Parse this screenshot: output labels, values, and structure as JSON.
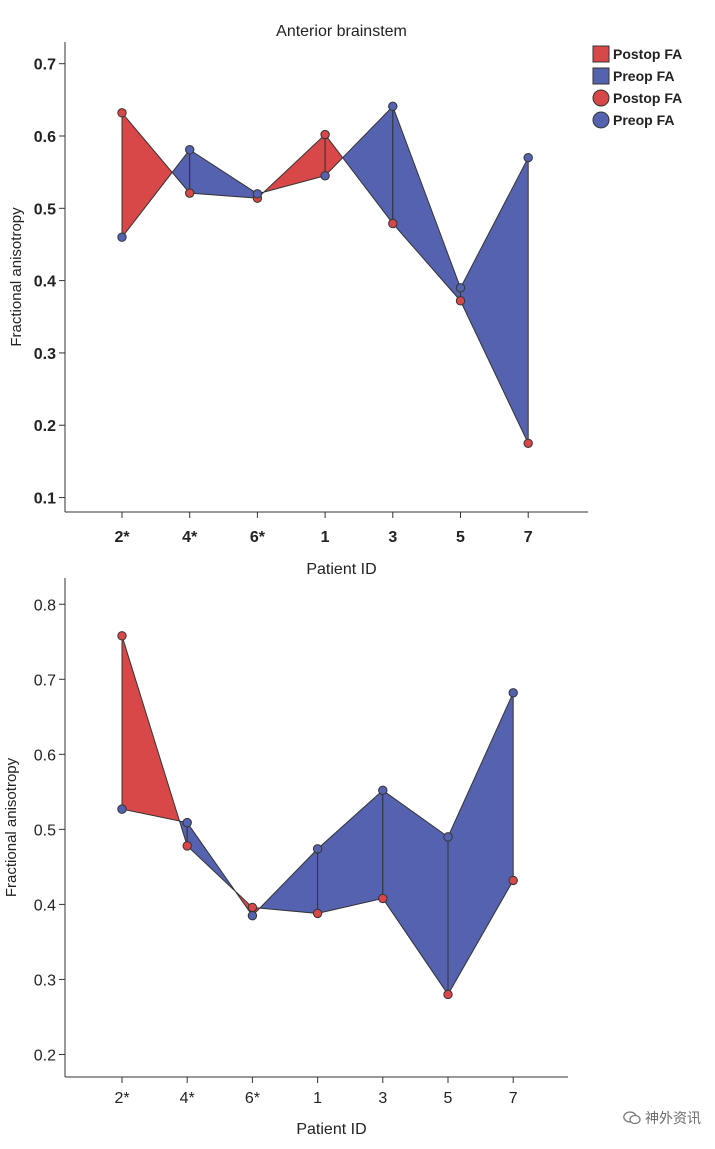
{
  "legend": {
    "items": [
      {
        "label": "Postop FA",
        "shape": "square",
        "color": "#d94848"
      },
      {
        "label": "Preop FA",
        "shape": "square",
        "color": "#5562b0"
      },
      {
        "label": "Postop FA",
        "shape": "circle",
        "color": "#d94848"
      },
      {
        "label": "Preop FA",
        "shape": "circle",
        "color": "#5562b0"
      }
    ]
  },
  "colors": {
    "postop": "#d94848",
    "preop": "#5562b0",
    "axis": "#333333"
  },
  "watermark": {
    "text": "神外资讯"
  },
  "chart_data": [
    {
      "type": "area",
      "title": "Anterior brainstem",
      "xlabel": "Patient ID",
      "ylabel": "Fractional anisotropy",
      "categories": [
        "2*",
        "4*",
        "6*",
        "1",
        "3",
        "5",
        "7"
      ],
      "yticks": [
        "0.1",
        "0.2",
        "0.3",
        "0.4",
        "0.5",
        "0.6",
        "0.7"
      ],
      "ylim": [
        0.08,
        0.73
      ],
      "series": [
        {
          "name": "Postop FA",
          "values": [
            0.632,
            0.521,
            0.514,
            0.602,
            0.479,
            0.372,
            0.175
          ]
        },
        {
          "name": "Preop FA",
          "values": [
            0.46,
            0.581,
            0.52,
            0.545,
            0.641,
            0.39,
            0.57
          ]
        }
      ]
    },
    {
      "type": "area",
      "title": "",
      "xlabel": "Patient ID",
      "ylabel": "Fractional anisotropy",
      "categories": [
        "2*",
        "4*",
        "6*",
        "1",
        "3",
        "5",
        "7"
      ],
      "yticks": [
        "0.2",
        "0.3",
        "0.4",
        "0.5",
        "0.6",
        "0.7",
        "0.8"
      ],
      "ylim": [
        0.17,
        0.835
      ],
      "series": [
        {
          "name": "Postop FA",
          "values": [
            0.758,
            0.478,
            0.396,
            0.388,
            0.408,
            0.28,
            0.432
          ]
        },
        {
          "name": "Preop FA",
          "values": [
            0.527,
            0.509,
            0.385,
            0.474,
            0.552,
            0.49,
            0.682
          ]
        }
      ]
    }
  ]
}
